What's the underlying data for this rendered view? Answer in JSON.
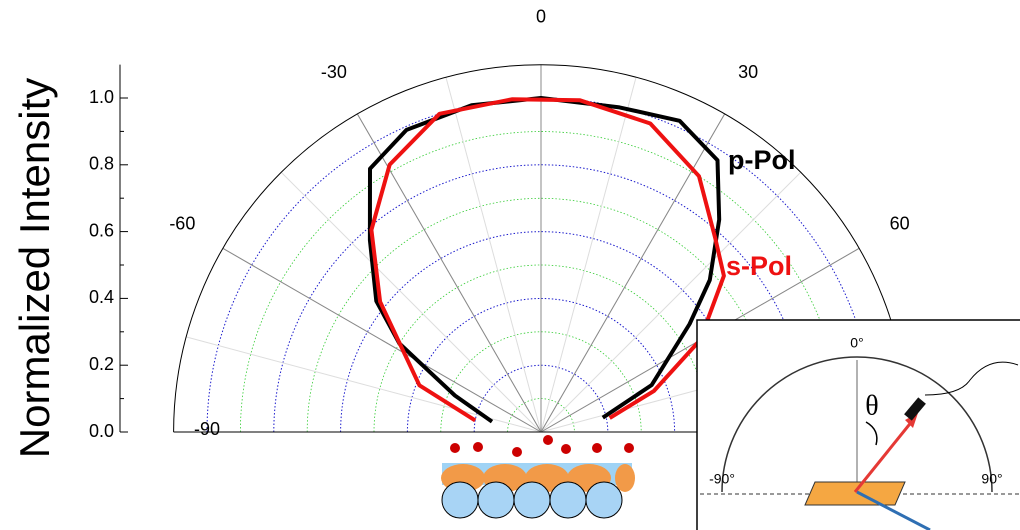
{
  "chart_data": {
    "type": "polar",
    "y_label": "Normalized Intensity",
    "rlim": [
      0,
      1.1
    ],
    "rticks": [
      0.0,
      0.2,
      0.4,
      0.6,
      0.8,
      1.0
    ],
    "rtick_labels": [
      "0.0",
      "0.2",
      "0.4",
      "0.6",
      "0.8",
      "1.0"
    ],
    "thetalim": [
      -90,
      90
    ],
    "thetaticks": [
      -90,
      -60,
      -30,
      0,
      30,
      60
    ],
    "grid": true,
    "series": [
      {
        "name": "p-Pol",
        "color": "#000000",
        "x": [
          -78,
          -67,
          -58,
          -51.5,
          -41.7,
          -33,
          -24,
          -12,
          0,
          13.6,
          24,
          33,
          40,
          48,
          54,
          67,
          77
        ],
        "values": [
          0.15,
          0.28,
          0.5,
          0.63,
          0.77,
          0.94,
          0.99,
          1.0,
          1.0,
          1.0,
          1.02,
          0.97,
          0.83,
          0.68,
          0.55,
          0.36,
          0.19
        ]
      },
      {
        "name": "s-Pol",
        "color": "#ee1111",
        "x": [
          -80,
          -69,
          -51,
          -40,
          -29.5,
          -17.7,
          -5,
          6.7,
          19.5,
          31.7,
          42,
          49.5,
          60,
          70,
          78.5
        ],
        "values": [
          0.2,
          0.39,
          0.62,
          0.79,
          0.92,
          1.0,
          1.0,
          1.0,
          0.98,
          0.9,
          0.78,
          0.72,
          0.55,
          0.36,
          0.21
        ]
      }
    ]
  },
  "inset": {
    "zero_label": "0°",
    "theta_label": "θ",
    "left_label": "-90°",
    "right_label": "90°"
  }
}
